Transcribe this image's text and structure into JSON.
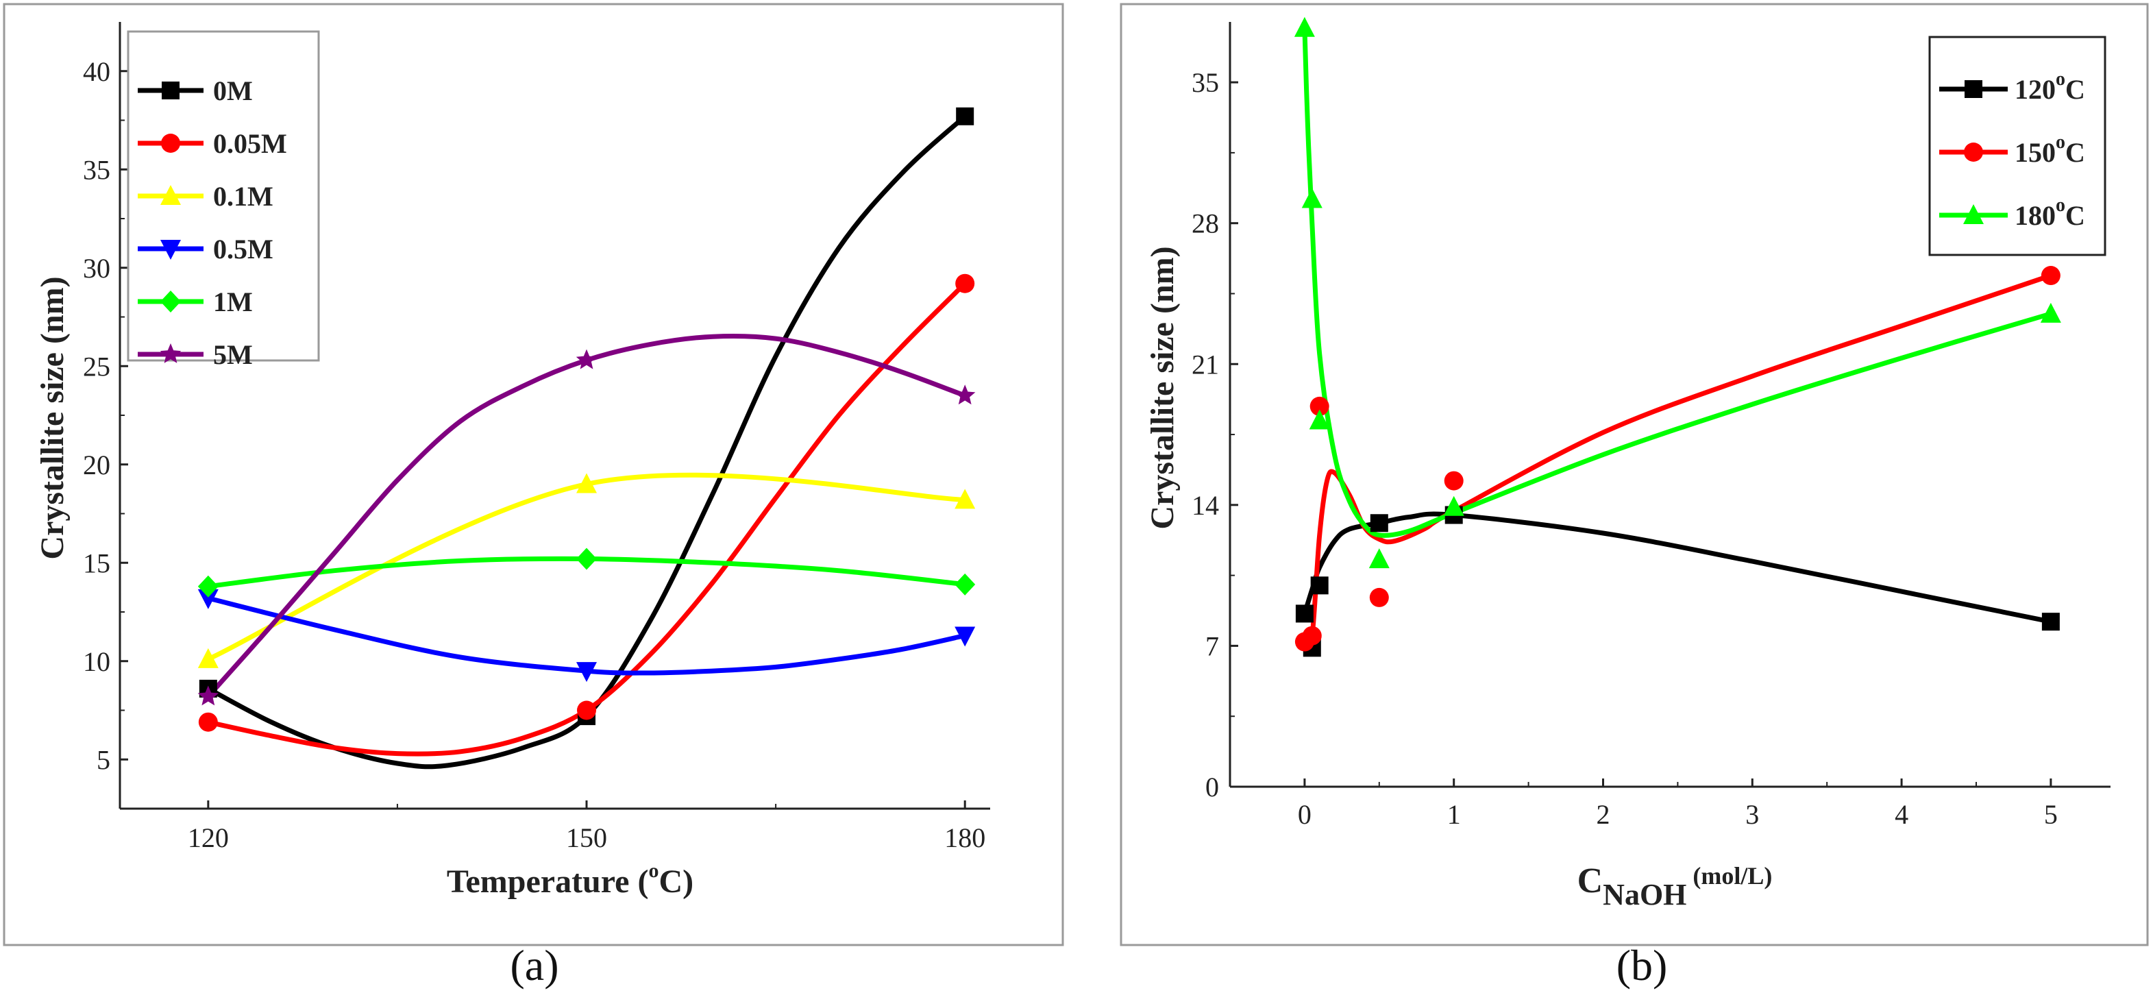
{
  "chart_data": [
    {
      "type": "line",
      "panel_label": "(a)",
      "xlabel": "Temperature (",
      "xlabel_sup": "o",
      "xlabel_end": "C)",
      "ylabel": "Crystallite size (nm)",
      "x": [
        120,
        150,
        180
      ],
      "xticks": [
        "120",
        "150",
        "180"
      ],
      "xlim": [
        113,
        182
      ],
      "ylim": [
        2.5,
        42.5
      ],
      "yticks": [
        "5",
        "10",
        "15",
        "20",
        "25",
        "30",
        "35",
        "40"
      ],
      "legend_position": "top-left",
      "series": [
        {
          "name": "0M",
          "color": "#000000",
          "marker": "square",
          "values": [
            8.6,
            7.2,
            37.7
          ],
          "curve": [
            [
              120,
              8.6
            ],
            [
              125,
              6.9
            ],
            [
              130,
              5.6
            ],
            [
              135,
              4.8
            ],
            [
              139,
              4.7
            ],
            [
              145,
              5.6
            ],
            [
              150,
              7.2
            ],
            [
              155,
              12.0
            ],
            [
              160,
              18.5
            ],
            [
              165,
              25.5
            ],
            [
              170,
              31.0
            ],
            [
              175,
              34.8
            ],
            [
              180,
              37.7
            ]
          ]
        },
        {
          "name": "0.05M",
          "color": "#ff0000",
          "marker": "circle",
          "values": [
            6.9,
            7.5,
            29.2
          ],
          "curve": [
            [
              120,
              6.9
            ],
            [
              125,
              6.2
            ],
            [
              130,
              5.6
            ],
            [
              135,
              5.3
            ],
            [
              140,
              5.4
            ],
            [
              145,
              6.1
            ],
            [
              150,
              7.5
            ],
            [
              155,
              10.3
            ],
            [
              160,
              14.0
            ],
            [
              165,
              18.3
            ],
            [
              170,
              22.5
            ],
            [
              175,
              26.0
            ],
            [
              180,
              29.2
            ]
          ]
        },
        {
          "name": "0.1M",
          "color": "#ffff00",
          "marker": "triangle-up",
          "values": [
            10.1,
            19.0,
            18.2
          ],
          "curve": [
            [
              120,
              10.1
            ],
            [
              150,
              19.0
            ],
            [
              180,
              18.2
            ]
          ]
        },
        {
          "name": "0.5M",
          "color": "#0000ff",
          "marker": "triangle-down",
          "values": [
            13.2,
            9.5,
            11.3
          ],
          "curve": [
            [
              120,
              13.2
            ],
            [
              130,
              11.6
            ],
            [
              140,
              10.2
            ],
            [
              150,
              9.5
            ],
            [
              155,
              9.4
            ],
            [
              160,
              9.5
            ],
            [
              165,
              9.7
            ],
            [
              170,
              10.1
            ],
            [
              175,
              10.6
            ],
            [
              180,
              11.3
            ]
          ]
        },
        {
          "name": "1M",
          "color": "#00ff00",
          "marker": "diamond",
          "values": [
            13.8,
            15.2,
            13.9
          ],
          "curve": [
            [
              120,
              13.8
            ],
            [
              130,
              14.6
            ],
            [
              140,
              15.1
            ],
            [
              150,
              15.2
            ],
            [
              160,
              15.0
            ],
            [
              170,
              14.6
            ],
            [
              180,
              13.9
            ]
          ]
        },
        {
          "name": "5M",
          "color": "#800080",
          "marker": "star",
          "values": [
            8.2,
            25.3,
            23.5
          ],
          "curve": [
            [
              120,
              8.2
            ],
            [
              125,
              11.8
            ],
            [
              130,
              15.5
            ],
            [
              135,
              19.2
            ],
            [
              140,
              22.2
            ],
            [
              145,
              24.0
            ],
            [
              150,
              25.3
            ],
            [
              155,
              26.1
            ],
            [
              160,
              26.5
            ],
            [
              165,
              26.4
            ],
            [
              170,
              25.7
            ],
            [
              175,
              24.7
            ],
            [
              180,
              23.5
            ]
          ]
        }
      ]
    },
    {
      "type": "line",
      "panel_label": "(b)",
      "xlabel": "C",
      "xlabel_sub": "NaOH",
      "xlabel_end": " (mol/L)",
      "ylabel": "Crystallite size (nm)",
      "xlim": [
        -0.5,
        5.4
      ],
      "ylim": [
        0,
        38
      ],
      "xtick_values": [
        0,
        1,
        2,
        3,
        4,
        5
      ],
      "xticks": [
        "0",
        "1",
        "2",
        "3",
        "4",
        "5"
      ],
      "ytick_values": [
        0,
        7,
        14,
        21,
        28,
        35
      ],
      "yticks": [
        "0",
        "7",
        "14",
        "21",
        "28",
        "35"
      ],
      "legend_position": "top-right",
      "series": [
        {
          "name": "120",
          "suffix": "C",
          "sup": "o",
          "color": "#000000",
          "marker": "square",
          "x": [
            0,
            0.05,
            0.1,
            0.5,
            1,
            5
          ],
          "values": [
            8.6,
            6.9,
            10.0,
            13.1,
            13.5,
            8.2
          ],
          "curve": [
            [
              0,
              8.6
            ],
            [
              0.05,
              9.8
            ],
            [
              0.1,
              10.9
            ],
            [
              0.2,
              12.2
            ],
            [
              0.3,
              12.8
            ],
            [
              0.5,
              13.1
            ],
            [
              0.7,
              13.4
            ],
            [
              1,
              13.5
            ],
            [
              2,
              12.6
            ],
            [
              3,
              11.2
            ],
            [
              4,
              9.7
            ],
            [
              5,
              8.2
            ]
          ]
        },
        {
          "name": "150",
          "suffix": "C",
          "sup": "o",
          "color": "#ff0000",
          "marker": "circle",
          "x": [
            0,
            0.05,
            0.1,
            0.5,
            1,
            5
          ],
          "values": [
            7.2,
            7.5,
            18.9,
            9.4,
            15.2,
            25.4
          ],
          "curve": [
            [
              0,
              7.2
            ],
            [
              0.05,
              7.5
            ],
            [
              0.1,
              12.5
            ],
            [
              0.15,
              15.2
            ],
            [
              0.2,
              15.6
            ],
            [
              0.3,
              14.5
            ],
            [
              0.4,
              12.9
            ],
            [
              0.5,
              12.3
            ],
            [
              0.6,
              12.2
            ],
            [
              0.8,
              12.8
            ],
            [
              1,
              13.7
            ],
            [
              2,
              17.6
            ],
            [
              3,
              20.4
            ],
            [
              4,
              22.9
            ],
            [
              5,
              25.4
            ]
          ]
        },
        {
          "name": "180",
          "suffix": "C",
          "sup": "o",
          "color": "#00ff00",
          "marker": "triangle-up",
          "x": [
            0,
            0.05,
            0.1,
            0.5,
            1,
            5
          ],
          "values": [
            37.7,
            29.2,
            18.2,
            11.3,
            13.9,
            23.5
          ],
          "curve": [
            [
              0,
              37.7
            ],
            [
              0.02,
              33.0
            ],
            [
              0.05,
              28.0
            ],
            [
              0.1,
              21.5
            ],
            [
              0.2,
              16.5
            ],
            [
              0.3,
              14.2
            ],
            [
              0.4,
              13.0
            ],
            [
              0.5,
              12.5
            ],
            [
              0.7,
              12.7
            ],
            [
              1,
              13.6
            ],
            [
              2,
              16.5
            ],
            [
              3,
              19.0
            ],
            [
              4,
              21.3
            ],
            [
              5,
              23.5
            ]
          ]
        }
      ]
    }
  ]
}
